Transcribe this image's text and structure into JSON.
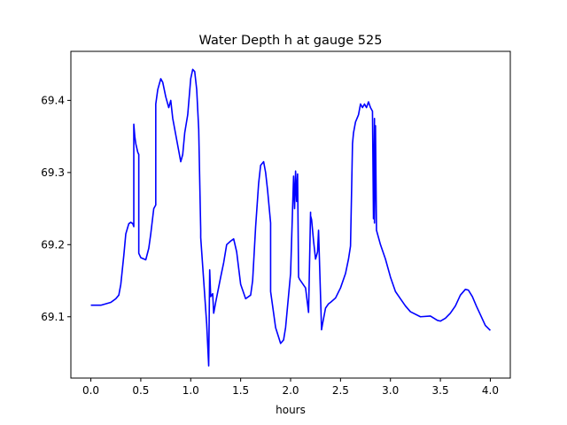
{
  "chart_data": {
    "type": "line",
    "title": "Water Depth h at gauge 525",
    "xlabel": "hours",
    "ylabel": "",
    "xlim": [
      -0.2,
      4.2
    ],
    "ylim": [
      69.015,
      69.468
    ],
    "xticks": [
      0.0,
      0.5,
      1.0,
      1.5,
      2.0,
      2.5,
      3.0,
      3.5,
      4.0
    ],
    "xtick_labels": [
      "0.0",
      "0.5",
      "1.0",
      "1.5",
      "2.0",
      "2.5",
      "3.0",
      "3.5",
      "4.0"
    ],
    "yticks": [
      69.1,
      69.2,
      69.3,
      69.4
    ],
    "ytick_labels": [
      "69.1",
      "69.2",
      "69.3",
      "69.4"
    ],
    "grid": false,
    "series": [
      {
        "name": "h",
        "color": "#0000ff",
        "x": [
          0.0,
          0.1,
          0.2,
          0.25,
          0.28,
          0.3,
          0.33,
          0.35,
          0.38,
          0.4,
          0.42,
          0.43,
          0.43,
          0.44,
          0.45,
          0.47,
          0.48,
          0.48,
          0.5,
          0.55,
          0.58,
          0.6,
          0.63,
          0.65,
          0.65,
          0.67,
          0.7,
          0.72,
          0.75,
          0.78,
          0.8,
          0.82,
          0.84,
          0.88,
          0.9,
          0.92,
          0.94,
          0.97,
          1.0,
          1.02,
          1.04,
          1.06,
          1.08,
          1.1,
          1.1,
          1.13,
          1.16,
          1.18,
          1.19,
          1.2,
          1.22,
          1.23,
          1.25,
          1.3,
          1.33,
          1.36,
          1.4,
          1.43,
          1.46,
          1.5,
          1.55,
          1.6,
          1.62,
          1.65,
          1.68,
          1.7,
          1.73,
          1.75,
          1.77,
          1.79,
          1.8,
          1.8,
          1.85,
          1.9,
          1.93,
          1.95,
          2.0,
          2.03,
          2.04,
          2.05,
          2.06,
          2.07,
          2.08,
          2.09,
          2.1,
          2.15,
          2.18,
          2.2,
          2.2,
          2.21,
          2.23,
          2.25,
          2.27,
          2.28,
          2.31,
          2.32,
          2.35,
          2.38,
          2.4,
          2.45,
          2.5,
          2.55,
          2.58,
          2.6,
          2.62,
          2.63,
          2.65,
          2.68,
          2.7,
          2.72,
          2.74,
          2.76,
          2.78,
          2.8,
          2.82,
          2.83,
          2.84,
          2.84,
          2.85,
          2.86,
          2.88,
          2.9,
          2.95,
          3.0,
          3.05,
          3.1,
          3.15,
          3.2,
          3.3,
          3.4,
          3.47,
          3.5,
          3.55,
          3.6,
          3.65,
          3.7,
          3.75,
          3.78,
          3.82,
          3.86,
          3.9,
          3.95,
          4.0
        ],
        "values": [
          69.116,
          69.116,
          69.12,
          69.125,
          69.13,
          69.145,
          69.185,
          69.215,
          69.229,
          69.231,
          69.229,
          69.225,
          69.367,
          69.35,
          69.34,
          69.328,
          69.325,
          69.188,
          69.182,
          69.179,
          69.195,
          69.215,
          69.25,
          69.255,
          69.395,
          69.415,
          69.43,
          69.425,
          69.405,
          69.39,
          69.4,
          69.375,
          69.36,
          69.33,
          69.315,
          69.325,
          69.355,
          69.38,
          69.43,
          69.443,
          69.44,
          69.415,
          69.36,
          69.22,
          69.21,
          69.15,
          69.09,
          69.032,
          69.165,
          69.128,
          69.132,
          69.105,
          69.12,
          69.155,
          69.175,
          69.2,
          69.205,
          69.208,
          69.19,
          69.145,
          69.125,
          69.13,
          69.15,
          69.225,
          69.285,
          69.31,
          69.315,
          69.3,
          69.275,
          69.245,
          69.23,
          69.135,
          69.085,
          69.063,
          69.068,
          69.085,
          69.16,
          69.295,
          69.25,
          69.302,
          69.26,
          69.298,
          69.155,
          69.152,
          69.15,
          69.14,
          69.106,
          69.245,
          69.24,
          69.235,
          69.205,
          69.18,
          69.19,
          69.22,
          69.082,
          69.09,
          69.112,
          69.118,
          69.12,
          69.126,
          69.14,
          69.16,
          69.18,
          69.198,
          69.34,
          69.355,
          69.37,
          69.38,
          69.395,
          69.39,
          69.395,
          69.39,
          69.398,
          69.39,
          69.385,
          69.236,
          69.375,
          69.23,
          69.365,
          69.22,
          69.21,
          69.2,
          69.18,
          69.155,
          69.135,
          69.125,
          69.115,
          69.107,
          69.1,
          69.101,
          69.095,
          69.094,
          69.098,
          69.105,
          69.115,
          69.13,
          69.138,
          69.137,
          69.128,
          69.115,
          69.103,
          69.088,
          69.081
        ]
      }
    ]
  }
}
